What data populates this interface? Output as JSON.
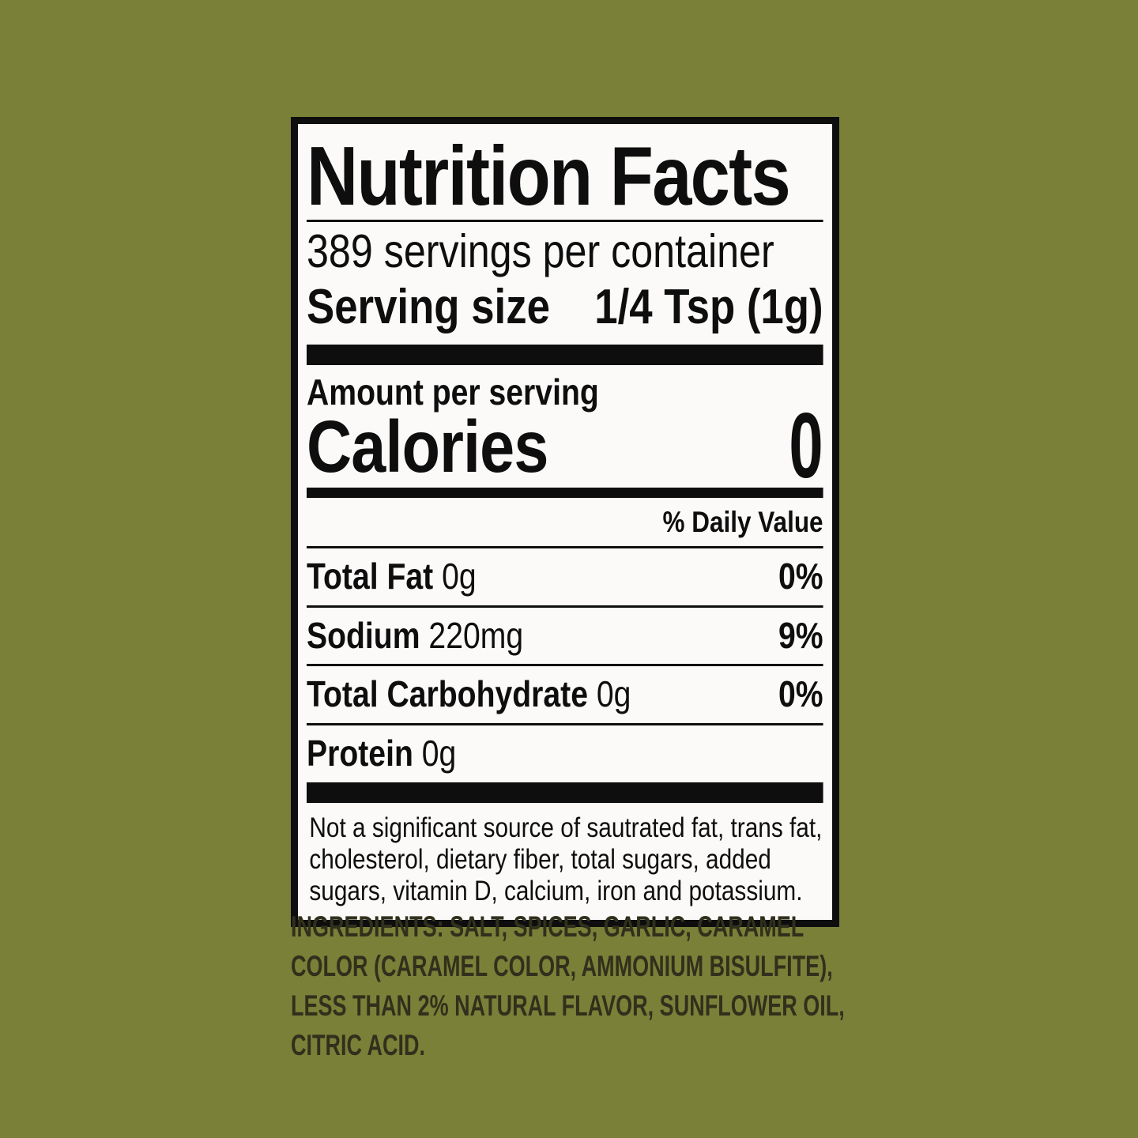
{
  "colors": {
    "background": "#7a8038",
    "label_background": "#fbfaf8",
    "label_text": "#0e0e0e",
    "ingredients_text": "#31301c"
  },
  "label": {
    "title": "Nutrition Facts",
    "servings_per_container": "389 servings per container",
    "serving_size": {
      "label": "Serving size",
      "value": "1/4 Tsp (1g)"
    },
    "amount_per_serving": "Amount per serving",
    "calories": {
      "label": "Calories",
      "value": "0"
    },
    "daily_value_header": "% Daily Value",
    "nutrients": [
      {
        "name": "Total Fat",
        "amount": "0g",
        "daily_value": "0%"
      },
      {
        "name": "Sodium",
        "amount": "220mg",
        "daily_value": "9%"
      },
      {
        "name": "Total Carbohydrate",
        "amount": "0g",
        "daily_value": "0%"
      },
      {
        "name": "Protein",
        "amount": "0g",
        "daily_value": ""
      }
    ],
    "footnote_lines": [
      "Not a significant source of sautrated fat, trans fat,",
      "cholesterol, dietary fiber, total sugars, added",
      "sugars, vitamin D, calcium, iron and potassium."
    ]
  },
  "ingredients": {
    "heading": "INGREDIENTS:",
    "line1_rest": "SALT, SPICES, GARLIC, CARAMEL",
    "line2": "COLOR (CARAMEL COLOR, AMMONIUM BISULFITE),",
    "line3": "LESS THAN 2% NATURAL FLAVOR, SUNFLOWER OIL,",
    "line4": "CITRIC ACID."
  }
}
